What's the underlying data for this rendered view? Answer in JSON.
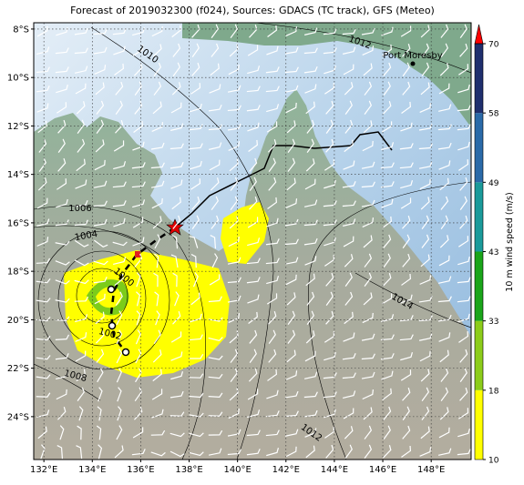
{
  "title": "Forecast of 2019032300 (f024), Sources: GDACS (TC track), GFS (Meteo)",
  "map": {
    "lon_range": [
      131.58,
      149.65
    ],
    "lat_range": [
      -7.74,
      -25.77
    ],
    "grid": true,
    "lon_ticks": [
      {
        "value": 132,
        "label": "132°E"
      },
      {
        "value": 134,
        "label": "134°E"
      },
      {
        "value": 136,
        "label": "136°E"
      },
      {
        "value": 138,
        "label": "138°E"
      },
      {
        "value": 140,
        "label": "140°E"
      },
      {
        "value": 142,
        "label": "142°E"
      },
      {
        "value": 144,
        "label": "144°E"
      },
      {
        "value": 146,
        "label": "146°E"
      },
      {
        "value": 148,
        "label": "148°E"
      }
    ],
    "lat_ticks": [
      {
        "value": -8,
        "label": "8°S"
      },
      {
        "value": -10,
        "label": "10°S"
      },
      {
        "value": -12,
        "label": "12°S"
      },
      {
        "value": -14,
        "label": "14°S"
      },
      {
        "value": -16,
        "label": "16°S"
      },
      {
        "value": -18,
        "label": "18°S"
      },
      {
        "value": -20,
        "label": "20°S"
      },
      {
        "value": -22,
        "label": "22°S"
      },
      {
        "value": -24,
        "label": "24°S"
      }
    ],
    "place_labels": [
      "Port Moresby"
    ],
    "contour_labels": [
      1010,
      1012,
      1006,
      1004,
      1000,
      1002,
      1008,
      1014,
      1012
    ]
  },
  "colorbar": {
    "label": "10 m wind speed (m/s)",
    "ticks": [
      10,
      18,
      33,
      43,
      49,
      58,
      70
    ],
    "colors": [
      "#ffff00",
      "#8ccc1a",
      "#1aa51a",
      "#1a9a9a",
      "#2a6aa8",
      "#1f2f6e"
    ],
    "extend_color": "#ff0000"
  }
}
